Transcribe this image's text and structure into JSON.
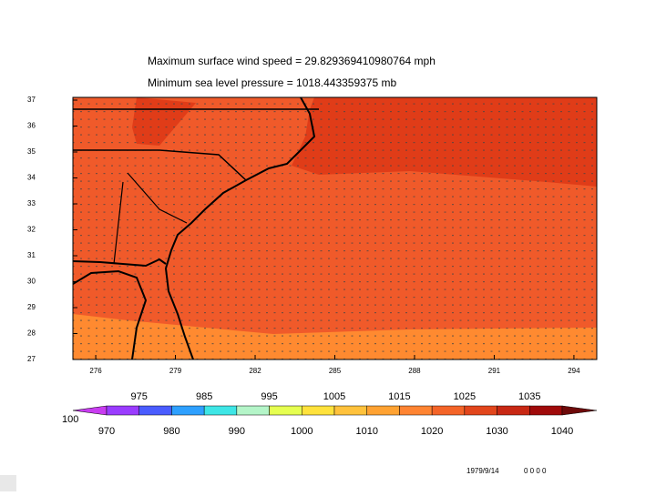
{
  "chart_data": {
    "type": "map",
    "title": "Maximum surface wind speed = 29.829369410980764 mph",
    "subtitle": "Minimum sea level pressure = 1018.443359375 mb",
    "xlim": [
      275.14,
      294.86
    ],
    "xticks": [
      276,
      279,
      282,
      285,
      288,
      291,
      294
    ],
    "ylim": [
      27,
      37
    ],
    "yticks": [
      37,
      36,
      35,
      34,
      33,
      32,
      31,
      30,
      29,
      28,
      27
    ],
    "colorbar": {
      "ticks": [
        970,
        975,
        980,
        985,
        990,
        995,
        1000,
        1005,
        1010,
        1015,
        1020,
        1025,
        1030,
        1035,
        1040
      ],
      "colors": [
        "#c83cf0",
        "#9a3cff",
        "#4a5cff",
        "#2ea0ff",
        "#3ee6e6",
        "#b4f5c8",
        "#e6ff50",
        "#ffe23c",
        "#ffc23c",
        "#ffa232",
        "#ff8432",
        "#f46428",
        "#e2461c",
        "#c82814",
        "#a00a0a",
        "#6e0a0a"
      ],
      "end_label": "100"
    },
    "date": "1979/9/14",
    "time": "0 0 0 0"
  }
}
